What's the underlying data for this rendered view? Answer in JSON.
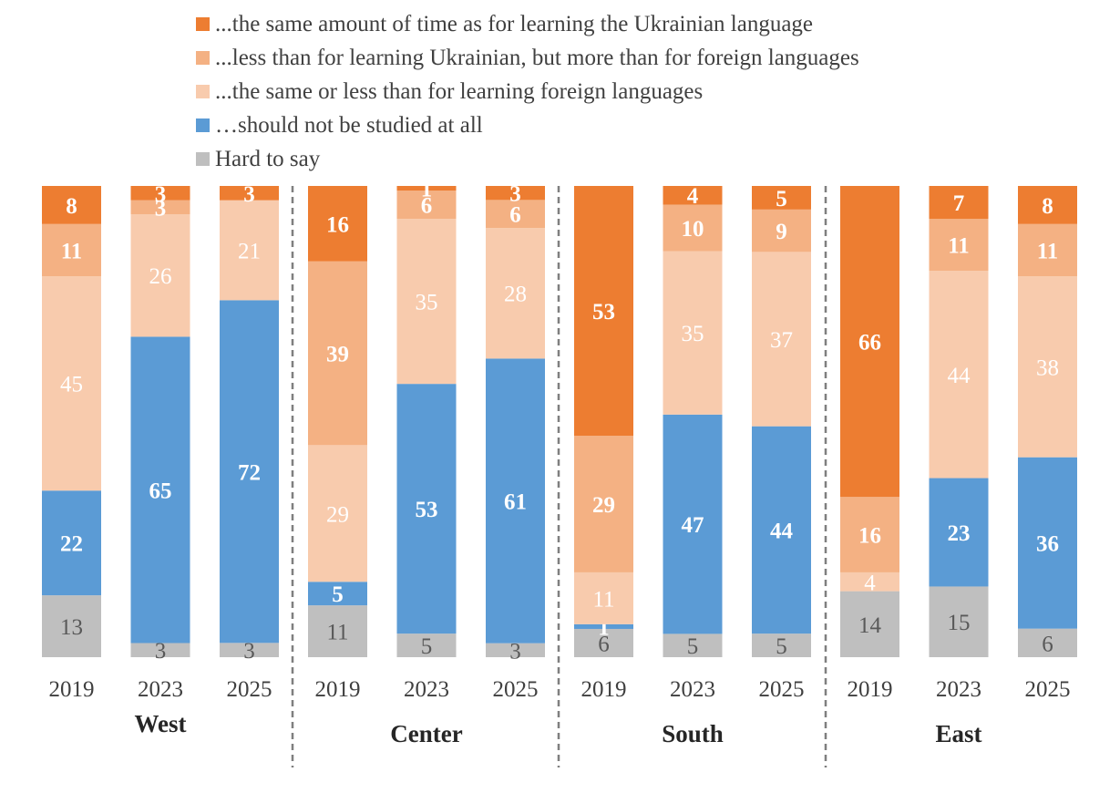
{
  "colors": {
    "same_as_ukrainian": "#ED7D31",
    "less_than_ukrainian": "#F4B183",
    "same_or_less_foreign": "#F8CBAD",
    "not_at_all": "#5B9BD5",
    "hard_to_say": "#BFBFBF"
  },
  "legend": [
    {
      "key": "same_as_ukrainian",
      "label": "...the same amount of time as for learning the Ukrainian language"
    },
    {
      "key": "less_than_ukrainian",
      "label": "...less than for learning Ukrainian, but more than for foreign languages"
    },
    {
      "key": "same_or_less_foreign",
      "label": "...the same or less than for learning foreign languages"
    },
    {
      "key": "not_at_all",
      "label": "…should not be studied at all"
    },
    {
      "key": "hard_to_say",
      "label": "Hard to say"
    }
  ],
  "chart_data": {
    "type": "bar",
    "stacked": true,
    "unit": "%",
    "ylim": [
      0,
      100
    ],
    "groups": [
      "West",
      "Center",
      "South",
      "East"
    ],
    "categories": [
      "2019",
      "2023",
      "2025"
    ],
    "series": [
      {
        "key": "hard_to_say",
        "name": "Hard to say",
        "values": [
          [
            13,
            3,
            3
          ],
          [
            11,
            5,
            3
          ],
          [
            6,
            5,
            5
          ],
          [
            14,
            15,
            6
          ]
        ]
      },
      {
        "key": "not_at_all",
        "name": "…should not be studied at all",
        "values": [
          [
            22,
            65,
            72
          ],
          [
            5,
            53,
            61
          ],
          [
            1,
            47,
            44
          ],
          [
            0,
            23,
            36
          ]
        ]
      },
      {
        "key": "same_or_less_foreign",
        "name": "...the same or less than for learning foreign languages",
        "values": [
          [
            45,
            26,
            21
          ],
          [
            29,
            35,
            28
          ],
          [
            11,
            35,
            37
          ],
          [
            4,
            44,
            38
          ]
        ]
      },
      {
        "key": "less_than_ukrainian",
        "name": "...less than for learning Ukrainian, but more than for foreign languages",
        "values": [
          [
            11,
            3,
            0
          ],
          [
            39,
            6,
            6
          ],
          [
            29,
            10,
            9
          ],
          [
            16,
            11,
            11
          ]
        ]
      },
      {
        "key": "same_as_ukrainian",
        "name": "...the same amount of time as for learning the Ukrainian language",
        "values": [
          [
            8,
            3,
            3
          ],
          [
            16,
            1,
            3
          ],
          [
            53,
            4,
            5
          ],
          [
            66,
            7,
            8
          ]
        ]
      }
    ]
  }
}
